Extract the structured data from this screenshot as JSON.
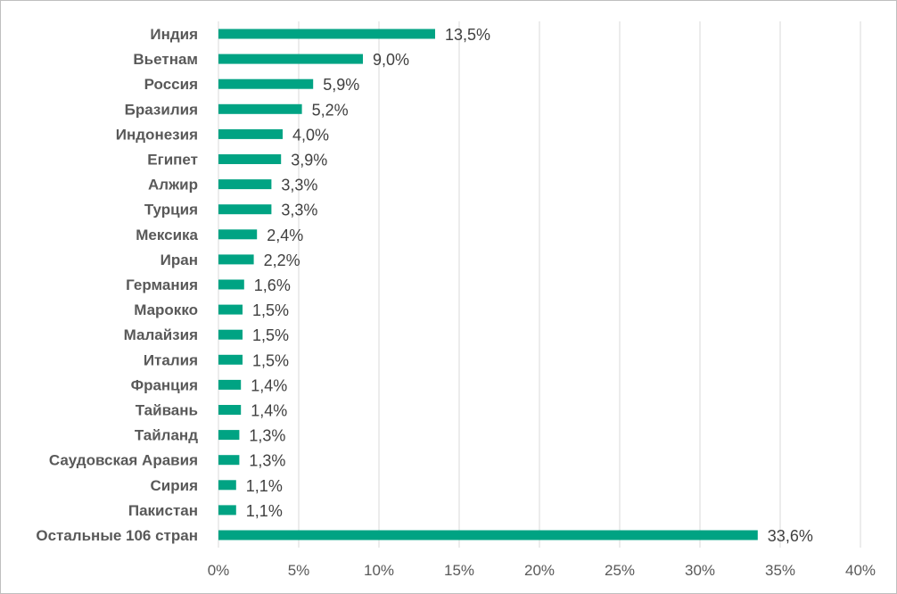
{
  "chart_data": {
    "type": "bar",
    "orientation": "horizontal",
    "categories": [
      "Индия",
      "Вьетнам",
      "Россия",
      "Бразилия",
      "Индонезия",
      "Египет",
      "Алжир",
      "Турция",
      "Мексика",
      "Иран",
      "Германия",
      "Марокко",
      "Малайзия",
      "Италия",
      "Франция",
      "Тайвань",
      "Тайланд",
      "Саудовская Аравия",
      "Сирия",
      "Пакистан",
      "Остальные 106 стран"
    ],
    "values": [
      13.5,
      9.0,
      5.9,
      5.2,
      4.0,
      3.9,
      3.3,
      3.3,
      2.4,
      2.2,
      1.6,
      1.5,
      1.5,
      1.5,
      1.4,
      1.4,
      1.3,
      1.3,
      1.1,
      1.1,
      33.6
    ],
    "value_labels": [
      "13,5%",
      "9,0%",
      "5,9%",
      "5,2%",
      "4,0%",
      "3,9%",
      "3,3%",
      "3,3%",
      "2,4%",
      "2,2%",
      "1,6%",
      "1,5%",
      "1,5%",
      "1,5%",
      "1,4%",
      "1,4%",
      "1,3%",
      "1,3%",
      "1,1%",
      "1,1%",
      "33,6%"
    ],
    "xlim": [
      0,
      40
    ],
    "x_ticks": [
      0,
      5,
      10,
      15,
      20,
      25,
      30,
      35,
      40
    ],
    "x_tick_labels": [
      "0%",
      "5%",
      "10%",
      "15%",
      "20%",
      "25%",
      "30%",
      "35%",
      "40%"
    ],
    "grid": "vertical",
    "bar_color": "#00a383",
    "title": "",
    "xlabel": "",
    "ylabel": ""
  }
}
